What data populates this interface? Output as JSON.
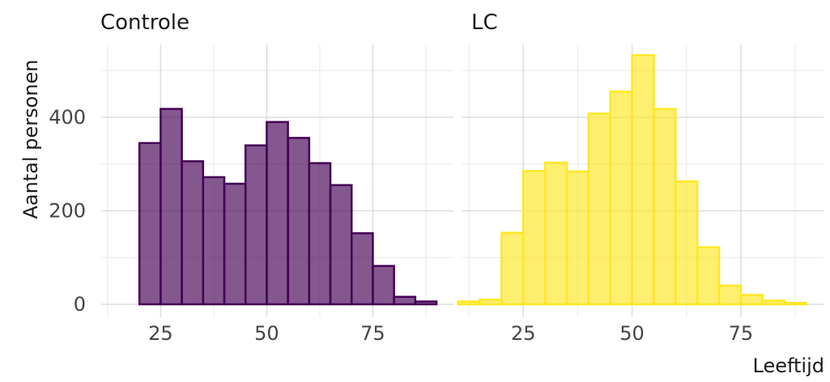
{
  "chart_data": {
    "type": "bar",
    "ylabel": "Aantal personen",
    "xlabel": "Leeftijd",
    "ylim": [
      0,
      560
    ],
    "xlim": [
      11,
      94
    ],
    "y_ticks": [
      0,
      200,
      400
    ],
    "x_ticks": [
      25,
      50,
      75
    ],
    "grid": true,
    "bin_width": 5,
    "bin_edges": [
      10,
      15,
      20,
      25,
      30,
      35,
      40,
      45,
      50,
      55,
      60,
      65,
      70,
      75,
      80,
      85,
      90,
      95
    ],
    "panels": [
      {
        "title": "Controle",
        "fill": "#440154",
        "values": [
          0,
          0,
          345,
          418,
          306,
          272,
          258,
          340,
          390,
          356,
          302,
          255,
          152,
          82,
          16,
          6,
          0
        ]
      },
      {
        "title": "LC",
        "fill": "#FDE725",
        "values": [
          6,
          10,
          153,
          285,
          303,
          284,
          408,
          455,
          533,
          418,
          263,
          122,
          40,
          20,
          8,
          3,
          0
        ]
      }
    ]
  }
}
